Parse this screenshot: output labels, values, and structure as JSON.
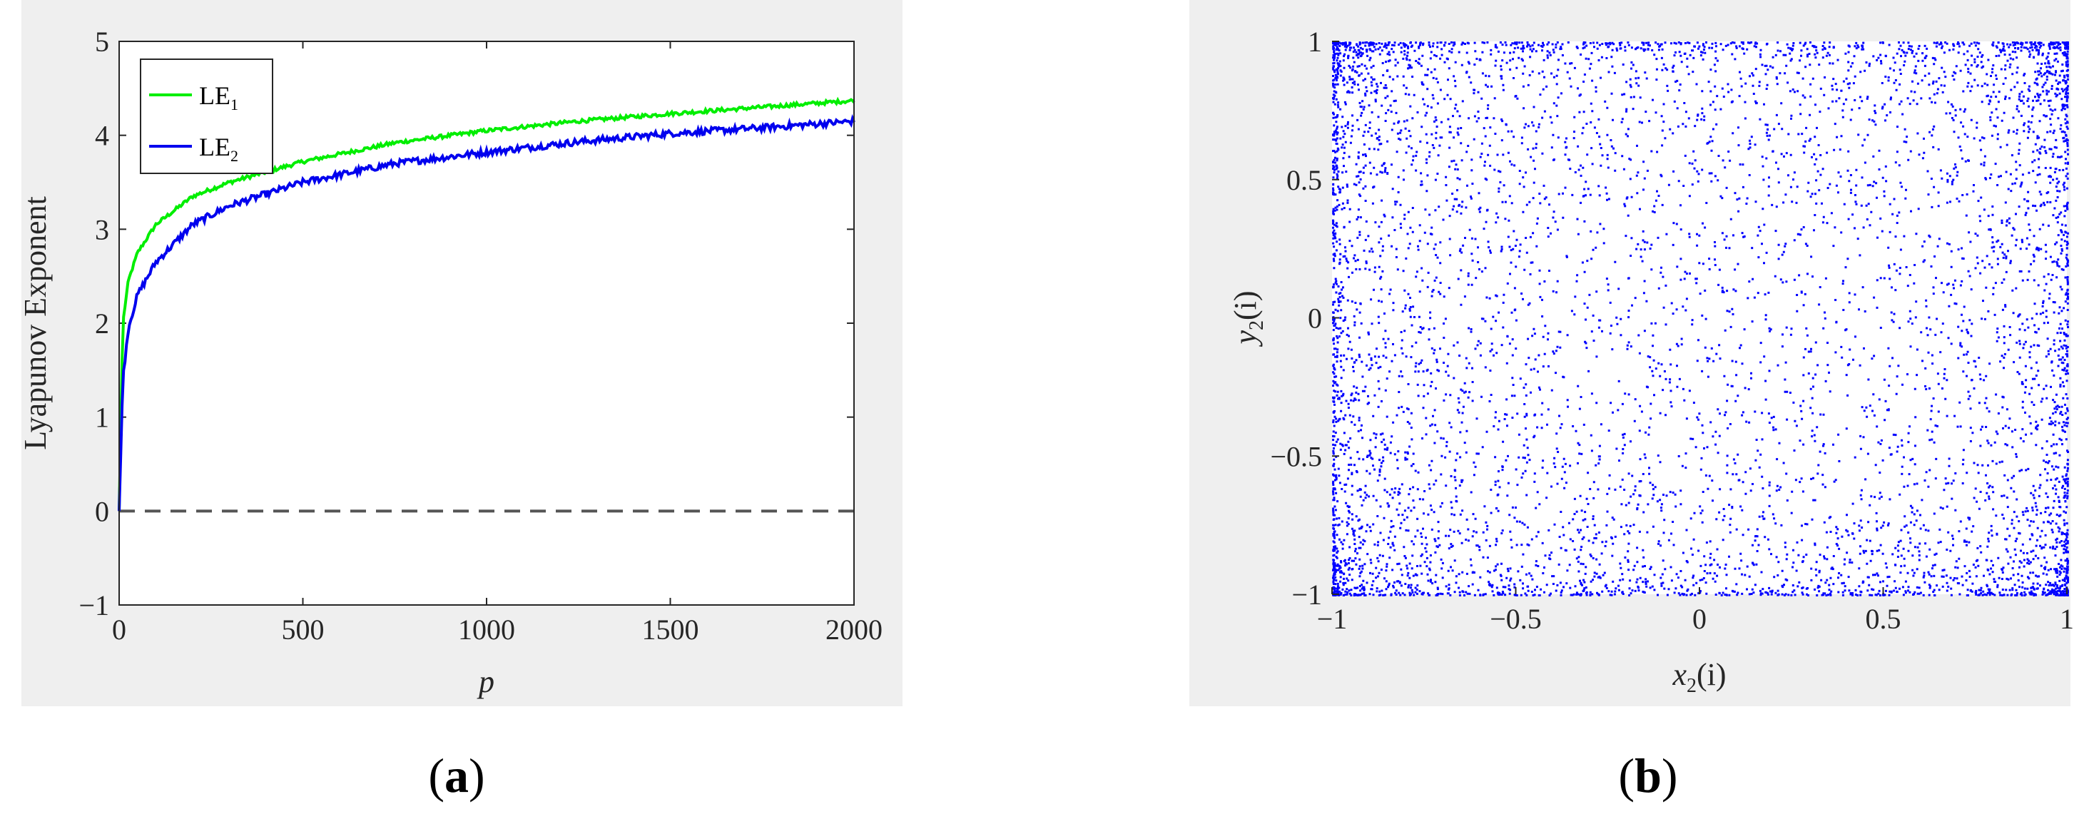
{
  "chart_data": [
    {
      "type": "line",
      "panel_label": "a",
      "xlabel": "p",
      "ylabel": "Lyapunov Exponent",
      "xlim": [
        0,
        2000
      ],
      "ylim": [
        -1,
        5
      ],
      "xticks": [
        "0",
        "500",
        "1000",
        "1500",
        "2000"
      ],
      "yticks": [
        "−1",
        "0",
        "1",
        "2",
        "3",
        "4",
        "5"
      ],
      "grid": false,
      "legend": "top-left",
      "x": [
        0,
        10,
        25,
        50,
        100,
        200,
        300,
        500,
        750,
        1000,
        1250,
        1500,
        1750,
        2000
      ],
      "series": [
        {
          "name": "LE",
          "subscript": "1",
          "color": "#00ee00",
          "values": [
            0.0,
            2.0,
            2.45,
            2.75,
            3.05,
            3.35,
            3.5,
            3.72,
            3.92,
            4.05,
            4.15,
            4.23,
            4.3,
            4.37
          ]
        },
        {
          "name": "LE",
          "subscript": "2",
          "color": "#0000ee",
          "values": [
            0.0,
            1.4,
            1.95,
            2.3,
            2.65,
            3.05,
            3.25,
            3.5,
            3.7,
            3.82,
            3.93,
            4.02,
            4.08,
            4.15
          ]
        }
      ],
      "reference_line": {
        "y": 0,
        "style": "dashed",
        "color": "#555555"
      }
    },
    {
      "type": "scatter",
      "panel_label": "b",
      "xlabel_base": "x",
      "xlabel_sub": "2",
      "xlabel_arg": "(i)",
      "ylabel_base": "y",
      "ylabel_sub": "2",
      "ylabel_arg": "(i)",
      "xlim": [
        -1,
        1
      ],
      "ylim": [
        -1,
        1
      ],
      "xticks": [
        "−1",
        "−0.5",
        "0",
        "0.5",
        "1"
      ],
      "yticks": [
        "−1",
        "−0.5",
        "0",
        "0.5",
        "1"
      ],
      "grid": false,
      "color": "#0000ff",
      "distribution": "dense uniform random points filling the square [-1,1]×[-1,1], denser near the edges"
    }
  ]
}
